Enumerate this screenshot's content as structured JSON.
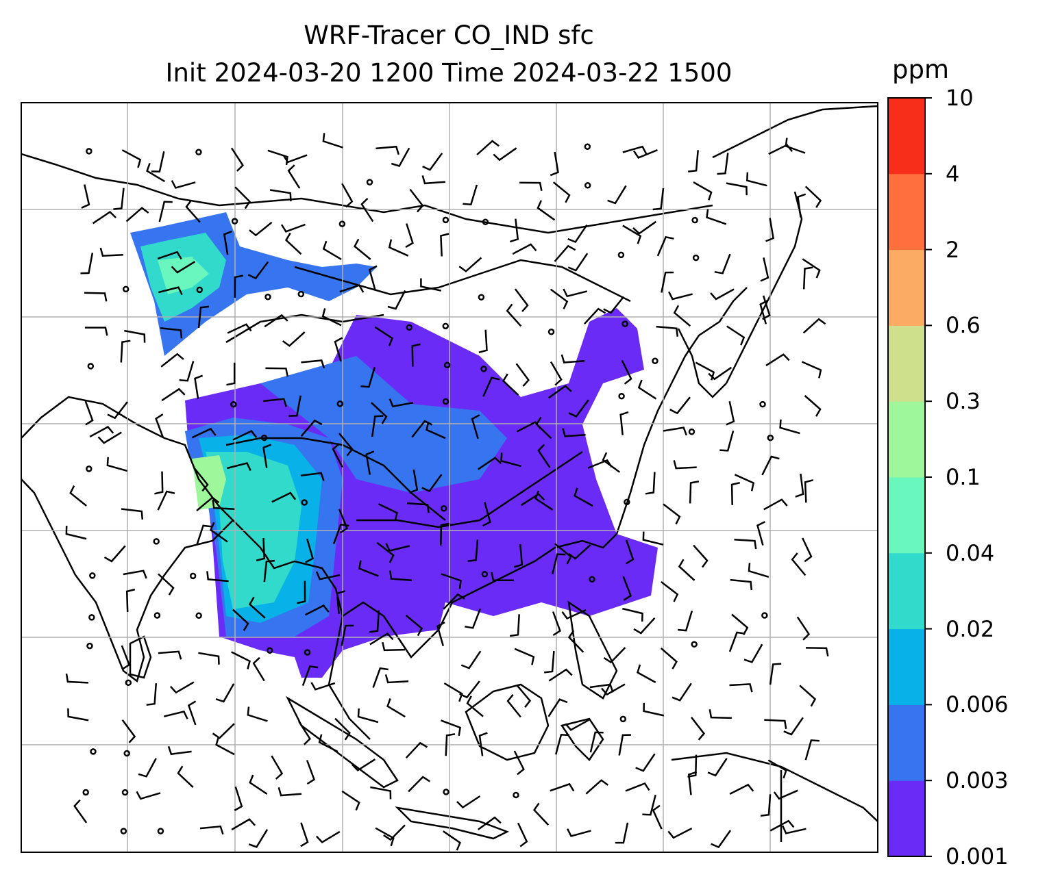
{
  "title_line1": "WRF-Tracer CO_IND sfc",
  "title_line2": "Init 2024-03-20 1200 Time 2024-03-22 1500",
  "colorbar": {
    "unit": "ppm",
    "levels": [
      "0.001",
      "0.003",
      "0.006",
      "0.02",
      "0.04",
      "0.1",
      "0.3",
      "0.6",
      "2",
      "4",
      "10"
    ],
    "colors": [
      "#6a2bf7",
      "#3674f0",
      "#08b2e8",
      "#31dacb",
      "#6af7bd",
      "#9ef79a",
      "#cfe08c",
      "#fcab62",
      "#ff703c",
      "#f72e19"
    ]
  },
  "map": {
    "gridlines": true,
    "features": [
      "coastlines",
      "country-borders",
      "wind-barbs",
      "tracer-concentration-fill"
    ]
  }
}
